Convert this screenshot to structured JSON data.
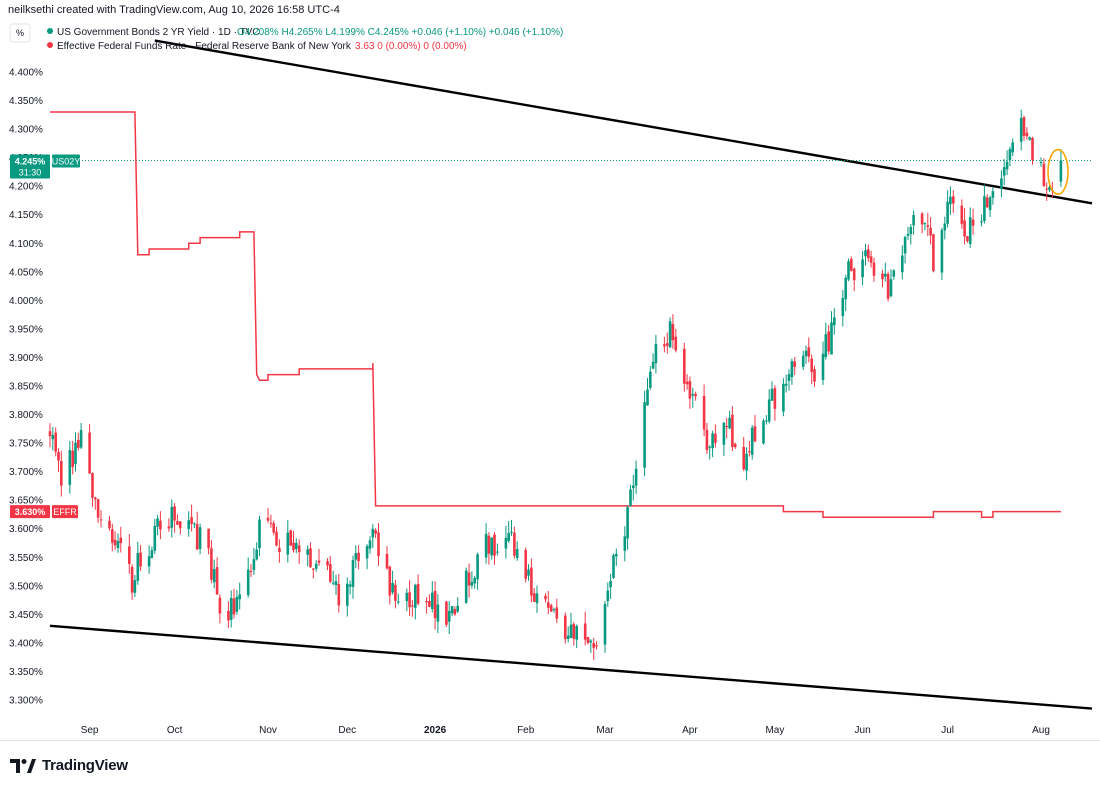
{
  "header": {
    "attribution": "neilksethi created with TradingView.com, Aug 10, 2026 16:58 UTC-4"
  },
  "legend": {
    "settings_icon_label": "%",
    "series": [
      {
        "name": "US Government Bonds 2 YR Yield · 1D · TVC",
        "ohlc": "O4.208%  H4.265%  L4.199%  C4.245%  +0.046 (+1.10%)  +0.046 (+1.10%)",
        "color": "#089981"
      },
      {
        "name": "Effective Federal Funds Rate · Federal Reserve Bank of New York",
        "ohlc": "3.63  0 (0.00%)  0 (0.00%)",
        "color": "#f23645"
      }
    ]
  },
  "price_tags": {
    "us02y": {
      "value": "4.245%",
      "ticker": "US02Y",
      "countdown": "31:30",
      "color": "#089981"
    },
    "effr": {
      "value": "3.630%",
      "ticker": "EFFR",
      "color": "#f23645"
    }
  },
  "footer": {
    "brand": "TradingView"
  },
  "chart_data": {
    "type": "candlestick",
    "y_axis": {
      "min": 3.28,
      "max": 4.44,
      "unit": "%",
      "ticks": [
        "4.400%",
        "4.350%",
        "4.300%",
        "4.250%",
        "4.200%",
        "4.150%",
        "4.100%",
        "4.050%",
        "4.000%",
        "3.950%",
        "3.900%",
        "3.850%",
        "3.800%",
        "3.750%",
        "3.700%",
        "3.650%",
        "3.600%",
        "3.550%",
        "3.500%",
        "3.450%",
        "3.400%",
        "3.350%",
        "3.300%"
      ]
    },
    "x_axis": {
      "start": "2025-08-18",
      "end": "2026-08-21",
      "ticks": [
        {
          "label": "Sep",
          "date": "2025-09-01"
        },
        {
          "label": "Oct",
          "date": "2025-10-01"
        },
        {
          "label": "Nov",
          "date": "2025-11-03"
        },
        {
          "label": "Dec",
          "date": "2025-12-01"
        },
        {
          "label": "2026",
          "date": "2026-01-01"
        },
        {
          "label": "Feb",
          "date": "2026-02-02"
        },
        {
          "label": "Mar",
          "date": "2026-03-02"
        },
        {
          "label": "Apr",
          "date": "2026-04-01"
        },
        {
          "label": "May",
          "date": "2026-05-01"
        },
        {
          "label": "Jun",
          "date": "2026-06-01"
        },
        {
          "label": "Jul",
          "date": "2026-07-01"
        },
        {
          "label": "Aug",
          "date": "2026-08-03"
        }
      ]
    },
    "series": [
      {
        "name": "US Government Bonds 2 YR Yield",
        "kind": "candles",
        "up_color": "#089981",
        "down_color": "#f23645",
        "first_date": "2025-08-18",
        "last_date": "2026-08-10",
        "close_anchors": [
          [
            "2025-08-18",
            3.76
          ],
          [
            "2025-08-22",
            3.7
          ],
          [
            "2025-08-27",
            3.73
          ],
          [
            "2025-08-29",
            3.75
          ],
          [
            "2025-09-03",
            3.64
          ],
          [
            "2025-09-09",
            3.58
          ],
          [
            "2025-09-16",
            3.51
          ],
          [
            "2025-09-19",
            3.55
          ],
          [
            "2025-09-24",
            3.59
          ],
          [
            "2025-09-30",
            3.62
          ],
          [
            "2025-10-07",
            3.6
          ],
          [
            "2025-10-13",
            3.56
          ],
          [
            "2025-10-17",
            3.45
          ],
          [
            "2025-10-22",
            3.47
          ],
          [
            "2025-10-27",
            3.52
          ],
          [
            "2025-10-31",
            3.6
          ],
          [
            "2025-11-06",
            3.58
          ],
          [
            "2025-11-14",
            3.57
          ],
          [
            "2025-11-20",
            3.55
          ],
          [
            "2025-11-28",
            3.48
          ],
          [
            "2025-12-05",
            3.56
          ],
          [
            "2025-12-11",
            3.58
          ],
          [
            "2025-12-16",
            3.5
          ],
          [
            "2025-12-26",
            3.48
          ],
          [
            "2026-01-06",
            3.45
          ],
          [
            "2026-01-13",
            3.52
          ],
          [
            "2026-01-20",
            3.58
          ],
          [
            "2026-01-28",
            3.57
          ],
          [
            "2026-02-04",
            3.5
          ],
          [
            "2026-02-11",
            3.45
          ],
          [
            "2026-02-19",
            3.42
          ],
          [
            "2026-02-27",
            3.41
          ],
          [
            "2026-03-04",
            3.52
          ],
          [
            "2026-03-10",
            3.62
          ],
          [
            "2026-03-16",
            3.8
          ],
          [
            "2026-03-20",
            3.92
          ],
          [
            "2026-03-25",
            3.95
          ],
          [
            "2026-03-31",
            3.86
          ],
          [
            "2026-04-07",
            3.76
          ],
          [
            "2026-04-14",
            3.78
          ],
          [
            "2026-04-20",
            3.72
          ],
          [
            "2026-04-27",
            3.8
          ],
          [
            "2026-05-04",
            3.86
          ],
          [
            "2026-05-11",
            3.9
          ],
          [
            "2026-05-15",
            3.87
          ],
          [
            "2026-05-22",
            3.96
          ],
          [
            "2026-05-27",
            4.05
          ],
          [
            "2026-06-03",
            4.07
          ],
          [
            "2026-06-10",
            4.02
          ],
          [
            "2026-06-16",
            4.1
          ],
          [
            "2026-06-22",
            4.15
          ],
          [
            "2026-06-26",
            4.07
          ],
          [
            "2026-07-01",
            4.18
          ],
          [
            "2026-07-07",
            4.12
          ],
          [
            "2026-07-13",
            4.16
          ],
          [
            "2026-07-17",
            4.2
          ],
          [
            "2026-07-22",
            4.25
          ],
          [
            "2026-07-27",
            4.33
          ],
          [
            "2026-07-30",
            4.28
          ],
          [
            "2026-08-04",
            4.22
          ],
          [
            "2026-08-07",
            4.199
          ],
          [
            "2026-08-10",
            4.245
          ]
        ],
        "last_candle": {
          "open": 4.208,
          "high": 4.265,
          "low": 4.199,
          "close": 4.245
        }
      },
      {
        "name": "Effective Federal Funds Rate",
        "kind": "step-line",
        "color": "#f23645",
        "points": [
          [
            "2025-08-18",
            4.33
          ],
          [
            "2025-09-17",
            4.33
          ],
          [
            "2025-09-18",
            4.08
          ],
          [
            "2025-09-22",
            4.09
          ],
          [
            "2025-10-06",
            4.1
          ],
          [
            "2025-10-10",
            4.11
          ],
          [
            "2025-10-24",
            4.12
          ],
          [
            "2025-10-29",
            4.12
          ],
          [
            "2025-10-30",
            3.87
          ],
          [
            "2025-10-31",
            3.86
          ],
          [
            "2025-11-03",
            3.87
          ],
          [
            "2025-11-14",
            3.88
          ],
          [
            "2025-12-10",
            3.89
          ],
          [
            "2025-12-11",
            3.64
          ],
          [
            "2026-05-01",
            3.64
          ],
          [
            "2026-05-04",
            3.63
          ],
          [
            "2026-05-18",
            3.62
          ],
          [
            "2026-06-26",
            3.63
          ],
          [
            "2026-07-10",
            3.63
          ],
          [
            "2026-07-13",
            3.62
          ],
          [
            "2026-07-17",
            3.63
          ],
          [
            "2026-08-10",
            3.63
          ]
        ]
      },
      {
        "name": "Upper trendline",
        "kind": "trendline",
        "color": "#000000",
        "points": [
          [
            "2025-09-24",
            4.455
          ],
          [
            "2026-08-21",
            4.17
          ]
        ]
      },
      {
        "name": "Lower trendline",
        "kind": "trendline",
        "color": "#000000",
        "points": [
          [
            "2025-08-18",
            3.43
          ],
          [
            "2026-08-21",
            3.285
          ]
        ]
      },
      {
        "name": "Highlight ellipse",
        "kind": "annotation-ellipse",
        "color": "#f7a600",
        "date": "2026-08-09",
        "y_center": 4.225,
        "y_radius": 0.039
      }
    ],
    "grid": false,
    "legend_position": "top-left"
  }
}
